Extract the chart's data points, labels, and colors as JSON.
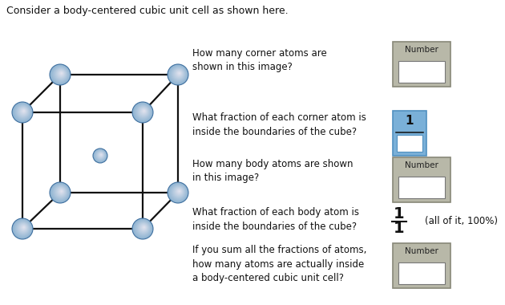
{
  "title": "Consider a body-centered cubic unit cell as shown here.",
  "title_fontsize": 9.0,
  "bg_color": "#ffffff",
  "q1_text": "How many corner atoms are\nshown in this image?",
  "q2_text": "What fraction of each corner atom is\ninside the boundaries of the cube?",
  "q3_text": "How many body atoms are shown\nin this image?",
  "q4_text": "What fraction of each body atom is\ninside the boundaries of the cube?",
  "q5_text": "If you sum all the fractions of atoms,\nhow many atoms are actually inside\na body-centered cubic unit cell?",
  "fraction_note": "(all of it, 100%)",
  "box_label": "Number",
  "atom_color_top": "#a8c8e8",
  "atom_color_bot": "#5080b0",
  "atom_edge_color": "#4070a0",
  "line_color": "#111111",
  "box_bg": "#b8b8a8",
  "box_inner_bg": "#ffffff",
  "fraction_box_bg": "#7ab0d8",
  "fraction_inner_bg": "#ffffff",
  "text_color": "#111111",
  "text_fontsize": 8.5,
  "box_border": "#888878"
}
